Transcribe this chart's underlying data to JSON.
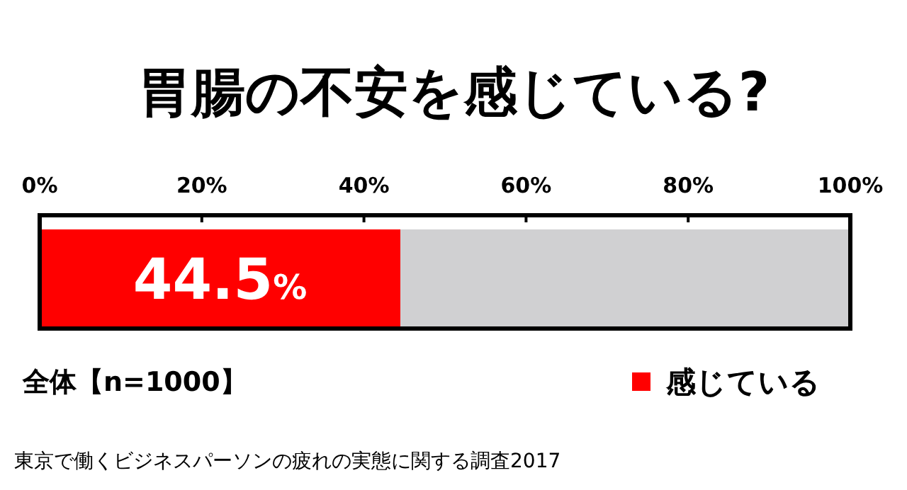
{
  "chart_data": {
    "type": "bar",
    "orientation": "horizontal",
    "stacked": true,
    "title": "胃腸の不安を感じている?",
    "categories": [
      null
    ],
    "series": [
      {
        "name": "感じている",
        "color": "#ff0000",
        "values": [
          44.5
        ],
        "value_labels": [
          "44.5%"
        ]
      },
      {
        "color": "#d0d0d2",
        "values": [
          55.5
        ]
      }
    ],
    "xlim": [
      0,
      100
    ],
    "xticks": [
      {
        "value": 0,
        "label": "0%"
      },
      {
        "value": 20,
        "label": "20%"
      },
      {
        "value": 40,
        "label": "40%"
      },
      {
        "value": 60,
        "label": "60%"
      },
      {
        "value": 80,
        "label": "80%"
      },
      {
        "value": 100,
        "label": "100%"
      }
    ],
    "legend": "bottom right",
    "grid": false,
    "annotations": [
      "全体【n=1000】",
      "東京で働くビジネスパーソンの疲れの実態に関する調査2017"
    ]
  }
}
